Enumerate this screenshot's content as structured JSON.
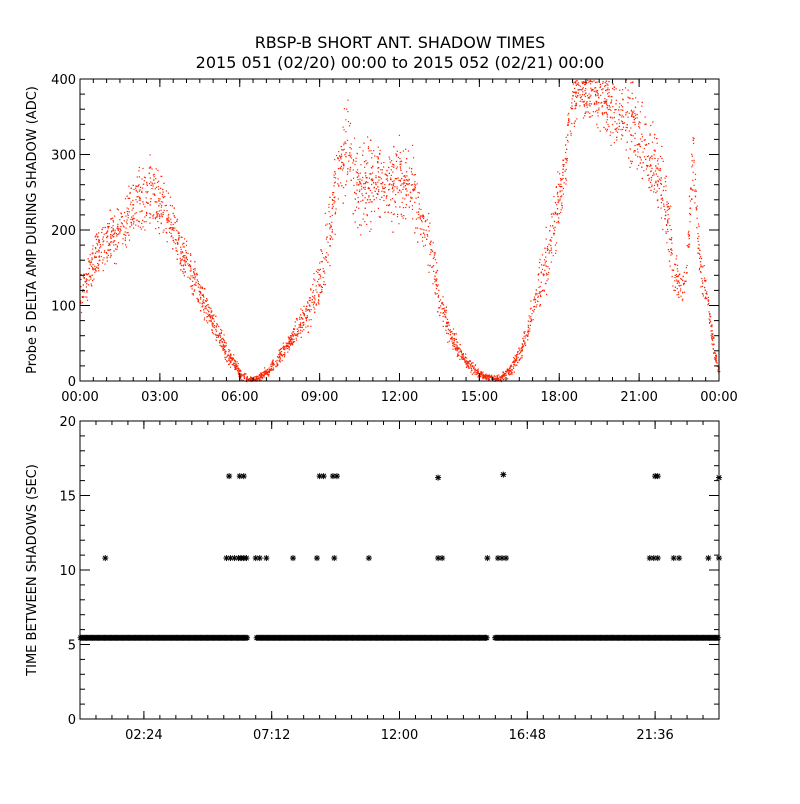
{
  "title_line1": "RBSP-B SHORT ANT. SHADOW TIMES",
  "title_line2": "2015 051 (02/20) 00:00 to 2015 052 (02/21) 00:00",
  "colors": {
    "scatter": "#ff2200",
    "axis": "#000000",
    "background": "#ffffff"
  },
  "chart_data": [
    {
      "type": "scatter",
      "ylabel": "Probe 5 DELTA AMP DURING SHADOW (ADC)",
      "xlabel": "",
      "x_unit": "hours since 2015 051 00:00",
      "xlim": [
        0,
        24
      ],
      "ylim": [
        0,
        400
      ],
      "xticks": [
        0,
        3,
        6,
        9,
        12,
        15,
        18,
        21,
        24
      ],
      "xtick_labels": [
        "00:00",
        "03:00",
        "06:00",
        "09:00",
        "12:00",
        "15:00",
        "18:00",
        "21:00",
        "00:00"
      ],
      "yticks": [
        0,
        100,
        200,
        300,
        400
      ],
      "ytick_labels": [
        "0",
        "100",
        "200",
        "300",
        "400"
      ],
      "envelope": {
        "x": [
          0,
          0.5,
          1,
          1.5,
          2,
          2.4,
          2.8,
          3.2,
          3.6,
          4,
          4.5,
          5,
          5.5,
          6,
          6.3,
          6.6,
          7,
          7.5,
          8,
          8.5,
          9,
          9.3,
          9.5,
          9.8,
          10,
          10.5,
          11,
          11.5,
          12,
          12.5,
          13,
          13.3,
          13.5,
          14,
          14.5,
          15,
          15.5,
          15.8,
          16.2,
          16.6,
          17,
          17.5,
          18,
          18.5,
          19,
          19.5,
          20,
          20.5,
          21,
          21.3,
          21.6,
          22,
          22.3,
          22.6,
          22.8,
          23,
          23.3,
          23.5,
          23.8,
          24
        ],
        "y": [
          115,
          160,
          185,
          205,
          230,
          250,
          245,
          225,
          190,
          155,
          115,
          75,
          40,
          10,
          2,
          3,
          12,
          35,
          60,
          90,
          130,
          190,
          240,
          300,
          310,
          255,
          265,
          265,
          260,
          255,
          190,
          150,
          100,
          55,
          25,
          10,
          3,
          5,
          18,
          45,
          100,
          160,
          240,
          380,
          385,
          370,
          360,
          350,
          330,
          300,
          280,
          230,
          145,
          120,
          160,
          300,
          140,
          120,
          40,
          10
        ],
        "spread": [
          20,
          22,
          25,
          28,
          32,
          35,
          35,
          30,
          25,
          20,
          15,
          12,
          10,
          5,
          3,
          3,
          5,
          8,
          10,
          15,
          25,
          35,
          40,
          35,
          45,
          40,
          40,
          40,
          40,
          40,
          30,
          25,
          15,
          10,
          6,
          4,
          3,
          4,
          6,
          10,
          20,
          30,
          40,
          25,
          25,
          30,
          35,
          40,
          40,
          40,
          35,
          35,
          25,
          20,
          20,
          30,
          20,
          15,
          10,
          5
        ]
      }
    },
    {
      "type": "scatter",
      "ylabel": "TIME BETWEEN SHADOWS (SEC)",
      "xlabel": "",
      "x_unit": "hours since 2015 051 00:00",
      "xlim": [
        0,
        24
      ],
      "ylim": [
        0,
        20
      ],
      "xticks": [
        2.4,
        7.2,
        12,
        16.8,
        21.6
      ],
      "xtick_labels": [
        "02:24",
        "07:12",
        "12:00",
        "16:48",
        "21:36"
      ],
      "yticks": [
        0,
        5,
        10,
        15,
        20
      ],
      "ytick_labels": [
        "0",
        "5",
        "10",
        "15",
        "20"
      ],
      "baseline_value": 5.45,
      "baseline_gaps": [
        [
          6.3,
          6.6
        ],
        [
          15.3,
          15.55
        ]
      ],
      "points": [
        {
          "x": 0.95,
          "y": 10.8
        },
        {
          "x": 5.5,
          "y": 10.8
        },
        {
          "x": 5.65,
          "y": 10.8
        },
        {
          "x": 5.8,
          "y": 10.8
        },
        {
          "x": 5.95,
          "y": 10.8
        },
        {
          "x": 6.05,
          "y": 10.8
        },
        {
          "x": 6.15,
          "y": 10.8
        },
        {
          "x": 6.25,
          "y": 10.8
        },
        {
          "x": 6.6,
          "y": 10.8
        },
        {
          "x": 6.75,
          "y": 10.8
        },
        {
          "x": 7.0,
          "y": 10.8
        },
        {
          "x": 8.0,
          "y": 10.8
        },
        {
          "x": 8.9,
          "y": 10.8
        },
        {
          "x": 9.55,
          "y": 10.8
        },
        {
          "x": 10.85,
          "y": 10.8
        },
        {
          "x": 13.45,
          "y": 10.8
        },
        {
          "x": 13.6,
          "y": 10.8
        },
        {
          "x": 15.3,
          "y": 10.8
        },
        {
          "x": 15.7,
          "y": 10.8
        },
        {
          "x": 15.85,
          "y": 10.8
        },
        {
          "x": 16.0,
          "y": 10.8
        },
        {
          "x": 21.4,
          "y": 10.8
        },
        {
          "x": 21.55,
          "y": 10.8
        },
        {
          "x": 21.7,
          "y": 10.8
        },
        {
          "x": 22.3,
          "y": 10.8
        },
        {
          "x": 22.5,
          "y": 10.8
        },
        {
          "x": 23.6,
          "y": 10.8
        },
        {
          "x": 24.0,
          "y": 10.8
        },
        {
          "x": 5.6,
          "y": 16.3
        },
        {
          "x": 6.0,
          "y": 16.3
        },
        {
          "x": 6.15,
          "y": 16.3
        },
        {
          "x": 9.0,
          "y": 16.3
        },
        {
          "x": 9.15,
          "y": 16.3
        },
        {
          "x": 9.5,
          "y": 16.3
        },
        {
          "x": 9.65,
          "y": 16.3
        },
        {
          "x": 13.45,
          "y": 16.2
        },
        {
          "x": 15.9,
          "y": 16.4
        },
        {
          "x": 21.6,
          "y": 16.3
        },
        {
          "x": 21.7,
          "y": 16.3
        },
        {
          "x": 24.0,
          "y": 16.2
        }
      ]
    }
  ]
}
